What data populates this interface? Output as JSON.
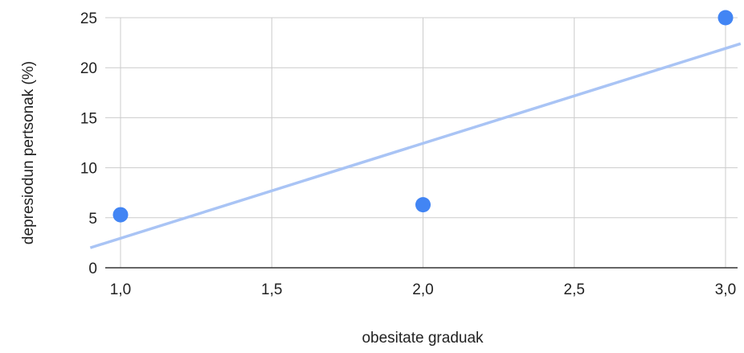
{
  "chart_data": {
    "type": "scatter",
    "title": "",
    "xlabel": "obesitate graduak",
    "ylabel": "depresiodun pertsonak (%)",
    "xlim": [
      1.0,
      3.0
    ],
    "ylim": [
      0,
      25
    ],
    "x_ticks": [
      1.0,
      1.5,
      2.0,
      2.5,
      3.0
    ],
    "x_tick_labels": [
      "1,0",
      "1,5",
      "2,0",
      "2,5",
      "3,0"
    ],
    "y_ticks": [
      0,
      5,
      10,
      15,
      20,
      25
    ],
    "y_tick_labels": [
      "0",
      "5",
      "10",
      "15",
      "20",
      "25"
    ],
    "grid": true,
    "legend": "none",
    "series": [
      {
        "x": [
          1.0,
          2.0,
          3.0
        ],
        "y": [
          5.3,
          6.3,
          25.0
        ],
        "color": "#4285f4"
      }
    ],
    "trendline": {
      "type": "linear",
      "color": "#a9c4f5",
      "x": [
        0.9,
        3.05
      ],
      "y": [
        2.0,
        22.4
      ]
    }
  }
}
